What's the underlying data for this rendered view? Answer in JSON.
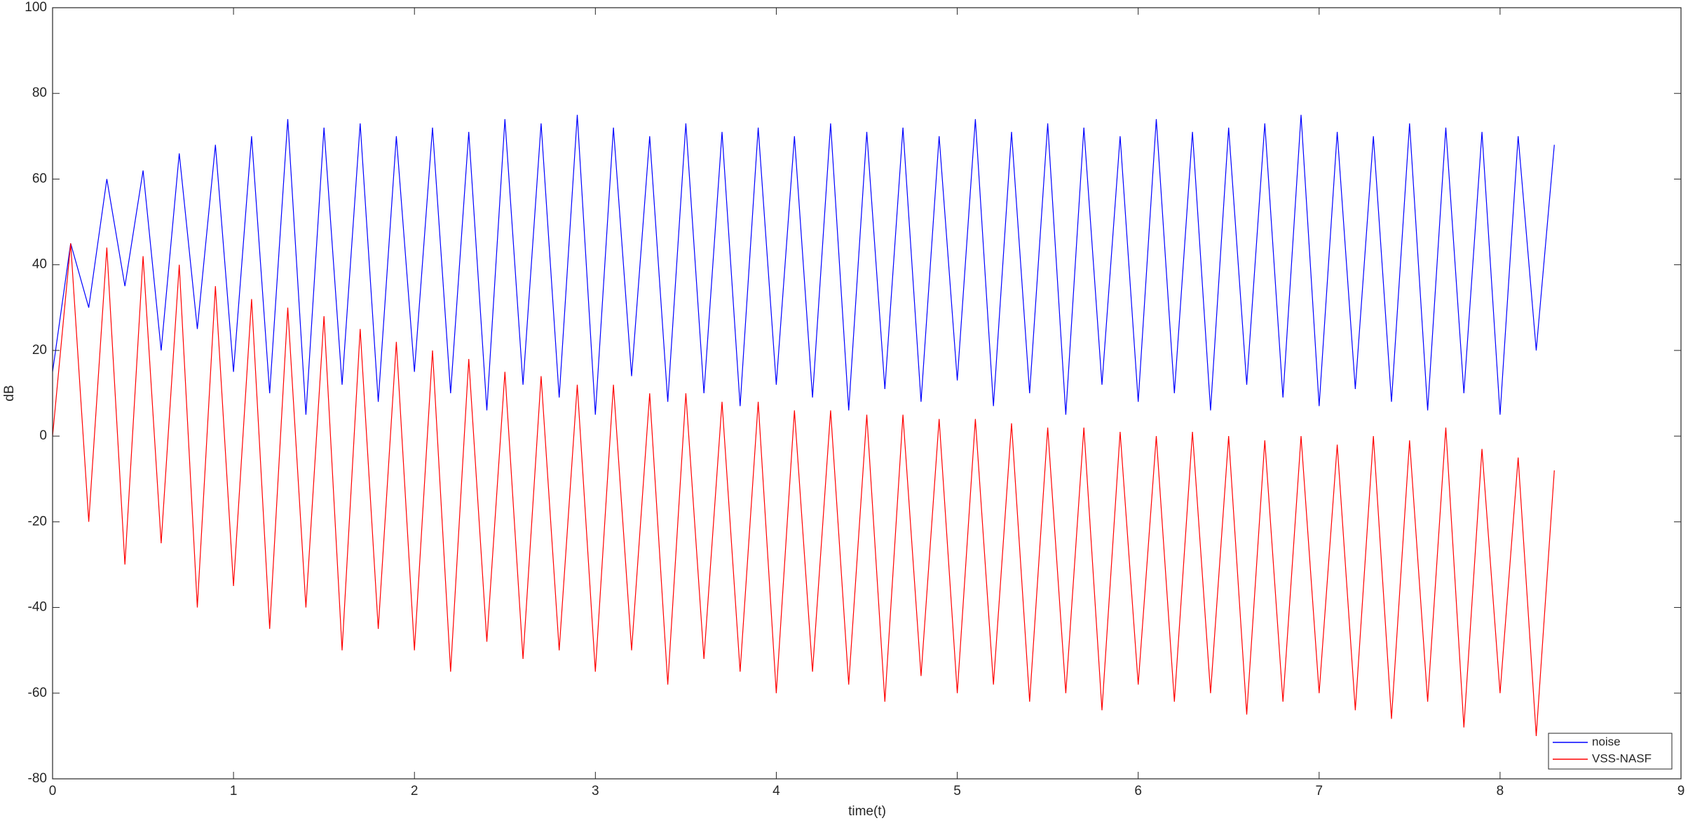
{
  "chart_data": {
    "type": "line",
    "x_label": "time(t)",
    "y_label": "dB",
    "x": [
      0,
      0.1,
      0.2,
      0.3,
      0.4,
      0.5,
      0.6,
      0.7,
      0.8,
      0.9,
      1.0,
      1.1,
      1.2,
      1.3,
      1.4,
      1.5,
      1.6,
      1.7,
      1.8,
      1.9,
      2.0,
      2.1,
      2.2,
      2.3,
      2.4,
      2.5,
      2.6,
      2.7,
      2.8,
      2.9,
      3.0,
      3.1,
      3.2,
      3.3,
      3.4,
      3.5,
      3.6,
      3.7,
      3.8,
      3.9,
      4.0,
      4.1,
      4.2,
      4.3,
      4.4,
      4.5,
      4.6,
      4.7,
      4.8,
      4.9,
      5.0,
      5.1,
      5.2,
      5.3,
      5.4,
      5.5,
      5.6,
      5.7,
      5.8,
      5.9,
      6.0,
      6.1,
      6.2,
      6.3,
      6.4,
      6.5,
      6.6,
      6.7,
      6.8,
      6.9,
      7.0,
      7.1,
      7.2,
      7.3,
      7.4,
      7.5,
      7.6,
      7.7,
      7.8,
      7.9,
      8.0,
      8.1,
      8.2,
      8.3
    ],
    "series": [
      {
        "name": "noise",
        "color": "#0000ff",
        "values": [
          15,
          45,
          30,
          60,
          35,
          62,
          20,
          66,
          25,
          68,
          15,
          70,
          10,
          74,
          5,
          72,
          12,
          73,
          8,
          70,
          15,
          72,
          10,
          71,
          6,
          74,
          12,
          73,
          9,
          75,
          5,
          72,
          14,
          70,
          8,
          73,
          10,
          71,
          7,
          72,
          12,
          70,
          9,
          73,
          6,
          71,
          11,
          72,
          8,
          70,
          13,
          74,
          7,
          71,
          10,
          73,
          5,
          72,
          12,
          70,
          8,
          74,
          10,
          71,
          6,
          72,
          12,
          73,
          9,
          75,
          7,
          71,
          11,
          70,
          8,
          73,
          6,
          72,
          10,
          71,
          5,
          70,
          20,
          68
        ]
      },
      {
        "name": "VSS-NASF",
        "color": "#ff0000",
        "values": [
          0,
          45,
          -20,
          44,
          -30,
          42,
          -25,
          40,
          -40,
          35,
          -35,
          32,
          -45,
          30,
          -40,
          28,
          -50,
          25,
          -45,
          22,
          -50,
          20,
          -55,
          18,
          -48,
          15,
          -52,
          14,
          -50,
          12,
          -55,
          12,
          -50,
          10,
          -58,
          10,
          -52,
          8,
          -55,
          8,
          -60,
          6,
          -55,
          6,
          -58,
          5,
          -62,
          5,
          -56,
          4,
          -60,
          4,
          -58,
          3,
          -62,
          2,
          -60,
          2,
          -64,
          1,
          -58,
          0,
          -62,
          1,
          -60,
          0,
          -65,
          -1,
          -62,
          0,
          -60,
          -2,
          -64,
          0,
          -66,
          -1,
          -62,
          2,
          -68,
          -3,
          -60,
          -5,
          -70,
          -8
        ]
      }
    ],
    "xlim": [
      0,
      9
    ],
    "xticks": [
      0,
      1,
      2,
      3,
      4,
      5,
      6,
      7,
      8,
      9
    ],
    "ylim": [
      -80,
      100
    ],
    "yticks": [
      -80,
      -60,
      -40,
      -20,
      0,
      20,
      40,
      60,
      80,
      100
    ],
    "grid": false,
    "legend_position": "bottom-right"
  }
}
